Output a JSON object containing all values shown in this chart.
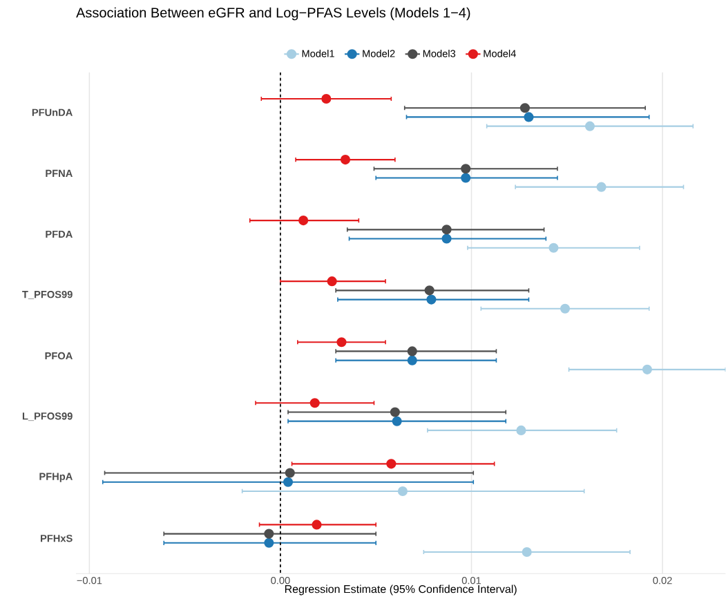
{
  "chart_data": {
    "type": "scatter",
    "orientation": "horizontal",
    "title": "Association Between eGFR and Log−PFAS Levels (Models 1−4)",
    "xlabel": "Regression Estimate (95% Confidence Interval)",
    "categories": [
      "PFUnDA",
      "PFNA",
      "PFDA",
      "T_PFOS99",
      "PFOA",
      "L_PFOS99",
      "PFHpA",
      "PFHxS"
    ],
    "series": [
      {
        "name": "Model1",
        "color": "#a6cee3",
        "values": [
          0.0162,
          0.0168,
          0.0143,
          0.0149,
          0.0192,
          0.0126,
          0.0064,
          0.0129
        ],
        "errors": [
          [
            0.0108,
            0.0216
          ],
          [
            0.0123,
            0.0211
          ],
          [
            0.0098,
            0.0188
          ],
          [
            0.0105,
            0.0193
          ],
          [
            0.0151,
            0.0233
          ],
          [
            0.0077,
            0.0176
          ],
          [
            -0.002,
            0.0159
          ],
          [
            0.0075,
            0.0183
          ]
        ]
      },
      {
        "name": "Model2",
        "color": "#1f78b4",
        "values": [
          0.013,
          0.0097,
          0.0087,
          0.0079,
          0.0069,
          0.0061,
          0.0004,
          -0.0006
        ],
        "errors": [
          [
            0.0066,
            0.0193
          ],
          [
            0.005,
            0.0145
          ],
          [
            0.0036,
            0.0139
          ],
          [
            0.003,
            0.013
          ],
          [
            0.0029,
            0.0113
          ],
          [
            0.0004,
            0.0118
          ],
          [
            -0.0093,
            0.0101
          ],
          [
            -0.0061,
            0.005
          ]
        ]
      },
      {
        "name": "Model3",
        "color": "#4d4d4d",
        "values": [
          0.0128,
          0.0097,
          0.0087,
          0.0078,
          0.0069,
          0.006,
          0.0005,
          -0.0006
        ],
        "errors": [
          [
            0.0065,
            0.0191
          ],
          [
            0.0049,
            0.0145
          ],
          [
            0.0035,
            0.0138
          ],
          [
            0.0029,
            0.013
          ],
          [
            0.0029,
            0.0113
          ],
          [
            0.0004,
            0.0118
          ],
          [
            -0.0092,
            0.0101
          ],
          [
            -0.0061,
            0.005
          ]
        ]
      },
      {
        "name": "Model4",
        "color": "#e31a1c",
        "values": [
          0.0024,
          0.0034,
          0.0012,
          0.0027,
          0.0032,
          0.0018,
          0.0058,
          0.0019
        ],
        "errors": [
          [
            -0.001,
            0.0058
          ],
          [
            0.0008,
            0.006
          ],
          [
            -0.0016,
            0.0041
          ],
          [
            0.0,
            0.0055
          ],
          [
            0.0009,
            0.0055
          ],
          [
            -0.0013,
            0.0049
          ],
          [
            0.0006,
            0.0112
          ],
          [
            -0.0011,
            0.005
          ]
        ]
      }
    ],
    "xlim": [
      -0.0107,
      0.0233
    ],
    "xticks": [
      {
        "value": -0.01,
        "label": "−0.01"
      },
      {
        "value": 0,
        "label": "0.00"
      },
      0.01,
      0.02
    ],
    "ref_lines": [
      {
        "axis": "x",
        "value": 0,
        "color": "#000000",
        "line_style": "dashed"
      }
    ],
    "grid": "x",
    "legend": "top",
    "marker": "circle"
  }
}
